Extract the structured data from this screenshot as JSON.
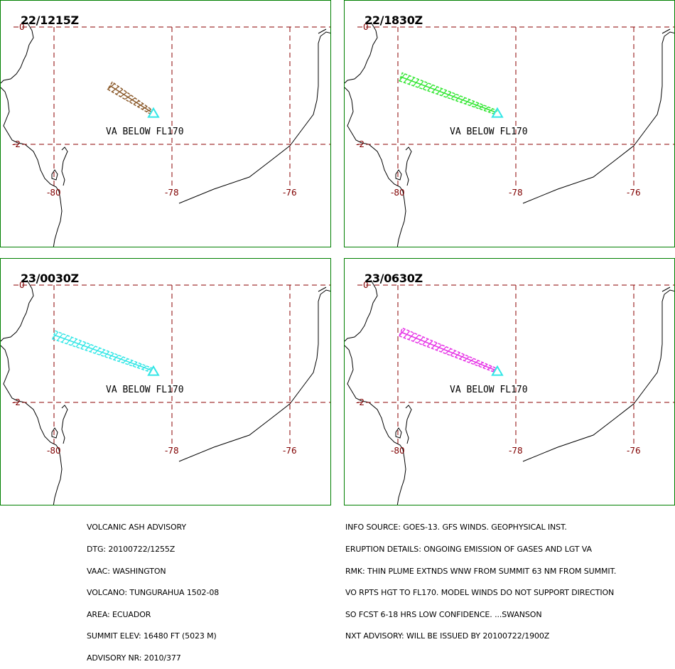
{
  "panels": [
    {
      "time": "22/1215Z",
      "plume_color": "#8B5A2B",
      "plume": {
        "start": [
          -79.05,
          -1.0
        ],
        "end": [
          -78.35,
          -1.45
        ]
      },
      "label": "VA BELOW FL170"
    },
    {
      "time": "22/1830Z",
      "plume_color": "#33E633",
      "plume": {
        "start": [
          -79.95,
          -0.85
        ],
        "end": [
          -78.35,
          -1.45
        ]
      },
      "label": "VA BELOW FL170"
    },
    {
      "time": "23/0030Z",
      "plume_color": "#33E6E6",
      "plume": {
        "start": [
          -80.0,
          -0.85
        ],
        "end": [
          -78.35,
          -1.45
        ]
      },
      "label": "VA BELOW FL170"
    },
    {
      "time": "23/0630Z",
      "plume_color": "#E633E6",
      "plume": {
        "start": [
          -79.95,
          -0.8
        ],
        "end": [
          -78.35,
          -1.45
        ]
      },
      "label": "VA BELOW FL170"
    }
  ],
  "axes": {
    "lon_ticks": [
      "-80",
      "-78",
      "-76"
    ],
    "lat_ticks": [
      "0",
      "-2"
    ],
    "grid_color": "#8B0000",
    "label_color": "#800000"
  },
  "volcano_marker_color": "#33E6E6",
  "advisory_left": [
    "VOLCANIC ASH ADVISORY",
    "DTG: 20100722/1255Z",
    "VAAC: WASHINGTON",
    "VOLCANO: TUNGURAHUA 1502-08",
    "AREA: ECUADOR",
    "SUMMIT ELEV: 16480 FT (5023 M)",
    "ADVISORY NR: 2010/377"
  ],
  "advisory_right": [
    "INFO SOURCE: GOES-13. GFS WINDS. GEOPHYSICAL INST.",
    "ERUPTION DETAILS: ONGOING EMISSION OF GASES AND LGT VA",
    "RMK: THIN PLUME EXTNDS WNW FROM SUMMIT 63 NM FROM SUMMIT.",
    "VO RPTS HGT TO FL170. MODEL WINDS DO NOT SUPPORT DIRECTION",
    "SO FCST 6-18 HRS LOW CONFIDENCE. ...SWANSON",
    "NXT ADVISORY: WILL BE ISSUED BY 20100722/1900Z"
  ]
}
